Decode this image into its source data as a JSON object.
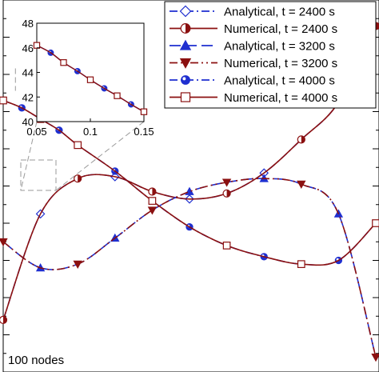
{
  "annotation": "100 nodes",
  "inset": {
    "xticks": [
      "0.05",
      "0.1",
      "0.15"
    ],
    "yticks": [
      "40",
      "42",
      "44",
      "46",
      "48"
    ]
  },
  "colors": {
    "analytical": "#1f2fd0",
    "numerical": "#8b1010",
    "frame": "#000000",
    "connector": "#9a9a9a"
  },
  "chart_data": [
    {
      "type": "line",
      "title": "",
      "xlabel": "",
      "ylabel": "",
      "xlim": [
        0,
        1
      ],
      "ylim": [
        -1,
        1
      ],
      "grid": false,
      "legend_position": "top-right",
      "series": [
        {
          "name": "Analytical, t = 2400 s",
          "marker": "diamond-open",
          "color": "#1f2fd0",
          "dash": "10,4,2,4",
          "x": [
            0.0,
            0.1,
            0.2,
            0.3,
            0.4,
            0.5,
            0.6,
            0.7,
            0.8,
            0.9,
            1.0
          ],
          "y": [
            -0.72,
            -0.15,
            0.04,
            0.05,
            -0.03,
            -0.07,
            -0.04,
            0.07,
            0.25,
            0.45,
            0.86
          ]
        },
        {
          "name": "Numerical, t = 2400 s",
          "marker": "circle-half",
          "color": "#8b1010",
          "dash": "",
          "x": [
            0.0,
            0.1,
            0.2,
            0.3,
            0.4,
            0.5,
            0.6,
            0.7,
            0.8,
            0.9,
            1.0
          ],
          "y": [
            -0.72,
            -0.15,
            0.04,
            0.05,
            -0.03,
            -0.07,
            -0.04,
            0.07,
            0.25,
            0.45,
            0.86
          ]
        },
        {
          "name": "Analytical, t = 3200 s",
          "marker": "triangle-up",
          "color": "#1f2fd0",
          "dash": "14,6",
          "x": [
            0.0,
            0.1,
            0.2,
            0.3,
            0.4,
            0.5,
            0.6,
            0.7,
            0.8,
            0.9,
            1.0
          ],
          "y": [
            -0.3,
            -0.44,
            -0.42,
            -0.28,
            -0.13,
            -0.03,
            0.02,
            0.04,
            0.01,
            -0.15,
            -0.92
          ]
        },
        {
          "name": "Numerical, t = 3200 s",
          "marker": "triangle-down",
          "color": "#8b1010",
          "dash": "10,4,2,4,2,4",
          "x": [
            0.0,
            0.1,
            0.2,
            0.3,
            0.4,
            0.5,
            0.6,
            0.7,
            0.8,
            0.9,
            1.0
          ],
          "y": [
            -0.3,
            -0.44,
            -0.42,
            -0.28,
            -0.13,
            -0.03,
            0.02,
            0.04,
            0.01,
            -0.15,
            -0.92
          ]
        },
        {
          "name": "Analytical, t = 4000 s",
          "marker": "circle-dot",
          "color": "#1f2fd0",
          "dash": "10,4,2,4",
          "x": [
            0.0,
            0.05,
            0.1,
            0.15,
            0.2,
            0.3,
            0.4,
            0.5,
            0.6,
            0.7,
            0.8,
            0.9,
            1.0
          ],
          "y": [
            0.46,
            0.42,
            0.36,
            0.3,
            0.22,
            0.08,
            -0.08,
            -0.22,
            -0.32,
            -0.38,
            -0.42,
            -0.4,
            -0.2
          ]
        },
        {
          "name": "Numerical, t = 4000 s",
          "marker": "square-open",
          "color": "#8b1010",
          "dash": "",
          "x": [
            0.0,
            0.05,
            0.1,
            0.15,
            0.2,
            0.3,
            0.4,
            0.5,
            0.6,
            0.7,
            0.8,
            0.9,
            1.0
          ],
          "y": [
            0.46,
            0.42,
            0.36,
            0.3,
            0.22,
            0.08,
            -0.08,
            -0.22,
            -0.32,
            -0.38,
            -0.42,
            -0.4,
            -0.2
          ]
        }
      ]
    },
    {
      "type": "line",
      "title": "",
      "xlabel": "",
      "ylabel": "",
      "xlim": [
        0.05,
        0.15
      ],
      "ylim": [
        40,
        48
      ],
      "xticks": [
        "0.05",
        "0.1",
        "0.15"
      ],
      "yticks": [
        "40",
        "42",
        "44",
        "46",
        "48"
      ],
      "grid": false,
      "series": [
        {
          "name": "Analytical, t = 4000 s",
          "marker": "circle-dot",
          "color": "#1f2fd0",
          "x": [
            0.05,
            0.063,
            0.075,
            0.088,
            0.1,
            0.113,
            0.125,
            0.138,
            0.15
          ],
          "y": [
            46.2,
            45.6,
            44.8,
            44.1,
            43.4,
            42.7,
            42.1,
            41.4,
            40.8
          ]
        },
        {
          "name": "Numerical, t = 4000 s",
          "marker": "square-open",
          "color": "#8b1010",
          "x": [
            0.05,
            0.063,
            0.075,
            0.088,
            0.1,
            0.113,
            0.125,
            0.138,
            0.15
          ],
          "y": [
            46.2,
            45.6,
            44.8,
            44.1,
            43.4,
            42.7,
            42.1,
            41.4,
            40.8
          ]
        }
      ]
    }
  ]
}
